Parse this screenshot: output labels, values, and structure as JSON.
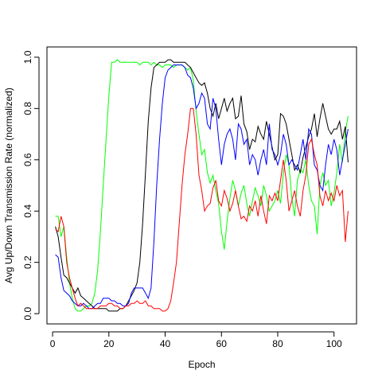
{
  "chart_data": {
    "type": "line",
    "title": "",
    "xlabel": "Epoch",
    "ylabel": "Avg Up/Down Transmission Rate (normalized)",
    "xlim": [
      -2,
      108
    ],
    "ylim": [
      -0.04,
      1.04
    ],
    "x_ticks": [
      0,
      20,
      40,
      60,
      80,
      100
    ],
    "y_ticks": [
      0.0,
      0.2,
      0.4,
      0.6,
      0.8,
      1.0
    ],
    "x_tick_labels": [
      "0",
      "20",
      "40",
      "60",
      "80",
      "100"
    ],
    "y_tick_labels": [
      "0.0",
      "0.2",
      "0.4",
      "0.6",
      "0.8",
      "1.0"
    ],
    "grid": false,
    "legend": "none",
    "series": [
      {
        "color": "#00ff00",
        "x": [
          1,
          2,
          3,
          4,
          5,
          6,
          7,
          8,
          9,
          10,
          11,
          12,
          13,
          14,
          15,
          16,
          17,
          18,
          19,
          20,
          21,
          22,
          23,
          24,
          25,
          26,
          27,
          28,
          29,
          30,
          31,
          32,
          33,
          34,
          35,
          36,
          37,
          38,
          39,
          40,
          41,
          42,
          43,
          44,
          45,
          46,
          47,
          48,
          49,
          50,
          51,
          52,
          53,
          54,
          55,
          56,
          57,
          58,
          59,
          60,
          61,
          62,
          63,
          64,
          65,
          66,
          67,
          68,
          69,
          70,
          71,
          72,
          73,
          74,
          75,
          76,
          77,
          78,
          79,
          80,
          81,
          82,
          83,
          84,
          85,
          86,
          87,
          88,
          89,
          90,
          91,
          92,
          93,
          94,
          95,
          96,
          97,
          98,
          99,
          100,
          101,
          102,
          103,
          104,
          105
        ],
        "y": [
          0.38,
          0.38,
          0.3,
          0.34,
          0.22,
          0.12,
          0.06,
          0.02,
          0.01,
          0.01,
          0.02,
          0.03,
          0.03,
          0.04,
          0.08,
          0.17,
          0.32,
          0.5,
          0.68,
          0.85,
          0.98,
          0.98,
          0.99,
          0.98,
          0.98,
          0.98,
          0.98,
          0.98,
          0.98,
          0.98,
          0.97,
          0.98,
          0.98,
          0.98,
          0.97,
          0.98,
          0.97,
          0.97,
          0.96,
          0.97,
          0.97,
          0.97,
          0.96,
          0.97,
          0.97,
          0.97,
          0.96,
          0.95,
          0.96,
          0.91,
          0.79,
          0.7,
          0.62,
          0.64,
          0.55,
          0.51,
          0.54,
          0.48,
          0.43,
          0.32,
          0.25,
          0.36,
          0.45,
          0.52,
          0.48,
          0.42,
          0.47,
          0.5,
          0.43,
          0.38,
          0.44,
          0.49,
          0.46,
          0.42,
          0.5,
          0.46,
          0.4,
          0.42,
          0.44,
          0.48,
          0.43,
          0.55,
          0.62,
          0.58,
          0.45,
          0.38,
          0.52,
          0.56,
          0.55,
          0.6,
          0.5,
          0.44,
          0.42,
          0.31,
          0.5,
          0.55,
          0.5,
          0.52,
          0.42,
          0.47,
          0.55,
          0.66,
          0.59,
          0.71,
          0.77
        ]
      },
      {
        "color": "#000000",
        "x": [
          1,
          2,
          3,
          4,
          5,
          6,
          7,
          8,
          9,
          10,
          11,
          12,
          13,
          14,
          15,
          16,
          17,
          18,
          19,
          20,
          21,
          22,
          23,
          24,
          25,
          26,
          27,
          28,
          29,
          30,
          31,
          32,
          33,
          34,
          35,
          36,
          37,
          38,
          39,
          40,
          41,
          42,
          43,
          44,
          45,
          46,
          47,
          48,
          49,
          50,
          51,
          52,
          53,
          54,
          55,
          56,
          57,
          58,
          59,
          60,
          61,
          62,
          63,
          64,
          65,
          66,
          67,
          68,
          69,
          70,
          71,
          72,
          73,
          74,
          75,
          76,
          77,
          78,
          79,
          80,
          81,
          82,
          83,
          84,
          85,
          86,
          87,
          88,
          89,
          90,
          91,
          92,
          93,
          94,
          95,
          96,
          97,
          98,
          99,
          100,
          101,
          102,
          103,
          104,
          105
        ],
        "y": [
          0.34,
          0.3,
          0.22,
          0.15,
          0.14,
          0.12,
          0.1,
          0.08,
          0.1,
          0.07,
          0.06,
          0.05,
          0.04,
          0.03,
          0.02,
          0.02,
          0.02,
          0.02,
          0.02,
          0.01,
          0.01,
          0.01,
          0.01,
          0.02,
          0.02,
          0.03,
          0.05,
          0.07,
          0.09,
          0.12,
          0.2,
          0.35,
          0.55,
          0.75,
          0.88,
          0.96,
          0.97,
          0.98,
          0.98,
          0.98,
          0.99,
          0.99,
          0.98,
          0.98,
          0.98,
          0.98,
          0.98,
          0.97,
          0.96,
          0.94,
          0.92,
          0.9,
          0.89,
          0.9,
          0.86,
          0.8,
          0.77,
          0.82,
          0.76,
          0.8,
          0.84,
          0.79,
          0.82,
          0.84,
          0.76,
          0.77,
          0.85,
          0.74,
          0.71,
          0.64,
          0.68,
          0.67,
          0.73,
          0.7,
          0.68,
          0.75,
          0.7,
          0.65,
          0.6,
          0.62,
          0.78,
          0.77,
          0.74,
          0.68,
          0.62,
          0.56,
          0.58,
          0.55,
          0.61,
          0.65,
          0.69,
          0.72,
          0.78,
          0.69,
          0.76,
          0.82,
          0.77,
          0.72,
          0.7,
          0.72,
          0.72,
          0.75,
          0.68,
          0.73,
          0.59
        ]
      },
      {
        "color": "#0000ff",
        "x": [
          1,
          2,
          3,
          4,
          5,
          6,
          7,
          8,
          9,
          10,
          11,
          12,
          13,
          14,
          15,
          16,
          17,
          18,
          19,
          20,
          21,
          22,
          23,
          24,
          25,
          26,
          27,
          28,
          29,
          30,
          31,
          32,
          33,
          34,
          35,
          36,
          37,
          38,
          39,
          40,
          41,
          42,
          43,
          44,
          45,
          46,
          47,
          48,
          49,
          50,
          51,
          52,
          53,
          54,
          55,
          56,
          57,
          58,
          59,
          60,
          61,
          62,
          63,
          64,
          65,
          66,
          67,
          68,
          69,
          70,
          71,
          72,
          73,
          74,
          75,
          76,
          77,
          78,
          79,
          80,
          81,
          82,
          83,
          84,
          85,
          86,
          87,
          88,
          89,
          90,
          91,
          92,
          93,
          94,
          95,
          96,
          97,
          98,
          99,
          100,
          101,
          102,
          103,
          104,
          105
        ],
        "y": [
          0.23,
          0.22,
          0.14,
          0.09,
          0.08,
          0.07,
          0.05,
          0.04,
          0.03,
          0.03,
          0.04,
          0.03,
          0.02,
          0.02,
          0.03,
          0.04,
          0.04,
          0.06,
          0.06,
          0.06,
          0.05,
          0.05,
          0.04,
          0.04,
          0.03,
          0.03,
          0.04,
          0.08,
          0.1,
          0.1,
          0.1,
          0.1,
          0.08,
          0.06,
          0.1,
          0.28,
          0.5,
          0.68,
          0.82,
          0.92,
          0.95,
          0.96,
          0.97,
          0.97,
          0.97,
          0.97,
          0.96,
          0.93,
          0.92,
          0.88,
          0.8,
          0.82,
          0.86,
          0.84,
          0.74,
          0.72,
          0.84,
          0.8,
          0.68,
          0.58,
          0.66,
          0.7,
          0.72,
          0.68,
          0.6,
          0.74,
          0.72,
          0.66,
          0.68,
          0.58,
          0.62,
          0.6,
          0.54,
          0.6,
          0.64,
          0.58,
          0.74,
          0.64,
          0.62,
          0.58,
          0.62,
          0.7,
          0.66,
          0.58,
          0.6,
          0.58,
          0.56,
          0.62,
          0.68,
          0.6,
          0.72,
          0.7,
          0.58,
          0.56,
          0.5,
          0.48,
          0.58,
          0.66,
          0.62,
          0.68,
          0.64,
          0.54,
          0.6,
          0.66,
          0.72
        ]
      },
      {
        "color": "#ff0000",
        "x": [
          1,
          2,
          3,
          4,
          5,
          6,
          7,
          8,
          9,
          10,
          11,
          12,
          13,
          14,
          15,
          16,
          17,
          18,
          19,
          20,
          21,
          22,
          23,
          24,
          25,
          26,
          27,
          28,
          29,
          30,
          31,
          32,
          33,
          34,
          35,
          36,
          37,
          38,
          39,
          40,
          41,
          42,
          43,
          44,
          45,
          46,
          47,
          48,
          49,
          50,
          51,
          52,
          53,
          54,
          55,
          56,
          57,
          58,
          59,
          60,
          61,
          62,
          63,
          64,
          65,
          66,
          67,
          68,
          69,
          70,
          71,
          72,
          73,
          74,
          75,
          76,
          77,
          78,
          79,
          80,
          81,
          82,
          83,
          84,
          85,
          86,
          87,
          88,
          89,
          90,
          91,
          92,
          93,
          94,
          95,
          96,
          97,
          98,
          99,
          100,
          101,
          102,
          103,
          104,
          105
        ],
        "y": [
          0.33,
          0.32,
          0.38,
          0.34,
          0.2,
          0.14,
          0.1,
          0.06,
          0.03,
          0.04,
          0.03,
          0.02,
          0.02,
          0.02,
          0.02,
          0.02,
          0.03,
          0.03,
          0.03,
          0.04,
          0.04,
          0.03,
          0.03,
          0.02,
          0.02,
          0.03,
          0.03,
          0.04,
          0.04,
          0.05,
          0.04,
          0.04,
          0.05,
          0.03,
          0.03,
          0.02,
          0.02,
          0.02,
          0.01,
          0.01,
          0.02,
          0.05,
          0.12,
          0.2,
          0.35,
          0.5,
          0.62,
          0.7,
          0.8,
          0.8,
          0.7,
          0.54,
          0.48,
          0.4,
          0.42,
          0.43,
          0.49,
          0.52,
          0.44,
          0.42,
          0.48,
          0.45,
          0.4,
          0.43,
          0.48,
          0.42,
          0.37,
          0.38,
          0.36,
          0.42,
          0.4,
          0.44,
          0.38,
          0.46,
          0.4,
          0.35,
          0.46,
          0.44,
          0.47,
          0.44,
          0.52,
          0.6,
          0.52,
          0.4,
          0.44,
          0.48,
          0.42,
          0.38,
          0.48,
          0.54,
          0.66,
          0.68,
          0.62,
          0.58,
          0.46,
          0.42,
          0.48,
          0.44,
          0.47,
          0.44,
          0.5,
          0.46,
          0.48,
          0.28,
          0.4
        ]
      }
    ]
  }
}
